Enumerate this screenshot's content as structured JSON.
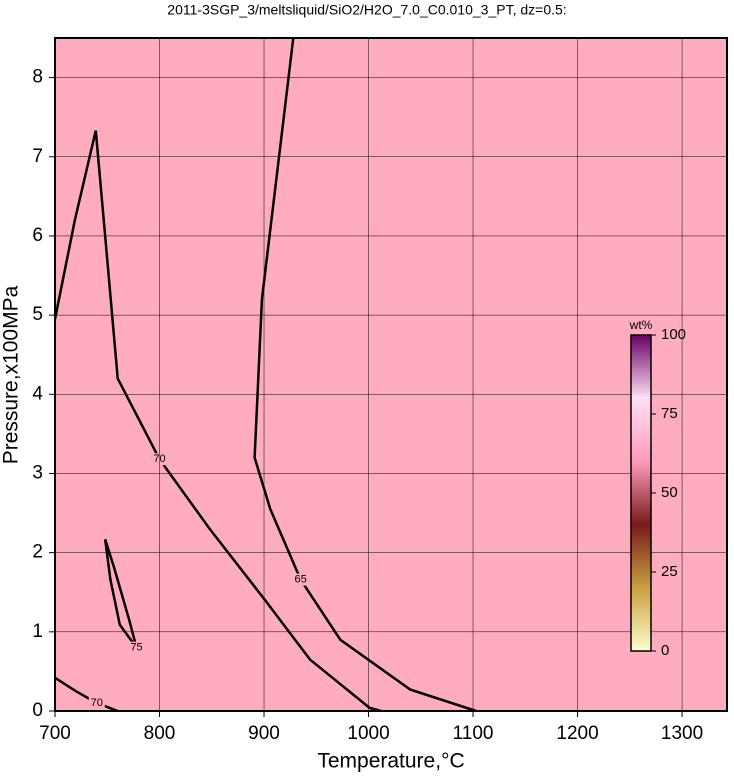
{
  "chart_data": {
    "type": "contour",
    "title": "2011-3SGP_3/meltsliquid/SiO2/H2O_7.0_C0.010_3_PT, dz=0.5:",
    "x_label": "Temperature,°C",
    "y_label": "Pressure,x100MPa",
    "xlim": [
      700,
      1343
    ],
    "ylim": [
      0,
      8.5
    ],
    "xticks": [
      700,
      800,
      900,
      1000,
      1100,
      1200,
      1300
    ],
    "yticks": [
      0,
      1,
      2,
      3,
      4,
      5,
      6,
      7,
      8
    ],
    "grid": true,
    "fill": "#ffadbe",
    "line_color": "#000000",
    "contours": [
      {
        "level": 70,
        "x": [
          700,
          719,
          739,
          748,
          760,
          800,
          848,
          901,
          944,
          1001,
          1012
        ],
        "y": [
          4.95,
          6.2,
          7.33,
          6.0,
          4.2,
          3.18,
          2.3,
          1.4,
          0.65,
          0.04,
          0
        ]
      },
      {
        "level": 65,
        "x": [
          928,
          898,
          891,
          906,
          935,
          973,
          1040,
          1103
        ],
        "y": [
          8.5,
          5.2,
          3.2,
          2.55,
          1.66,
          0.9,
          0.27,
          0
        ]
      },
      {
        "level": 75,
        "x": [
          748,
          753,
          762,
          778,
          771,
          757,
          748
        ],
        "y": [
          2.17,
          1.66,
          1.09,
          0.8,
          1.15,
          1.79,
          2.17
        ]
      },
      {
        "level": 70,
        "x": [
          700,
          720,
          740,
          760
        ],
        "y": [
          0.42,
          0.25,
          0.1,
          0
        ]
      }
    ],
    "colorbar": {
      "label": "wt%",
      "lim": [
        0,
        100
      ],
      "ticks": [
        0,
        25,
        50,
        75,
        100
      ],
      "colors": [
        "#ffffcc",
        "#c8a040",
        "#7a1a1a",
        "#ff99bb",
        "#ffe0f4",
        "#660066"
      ]
    }
  }
}
